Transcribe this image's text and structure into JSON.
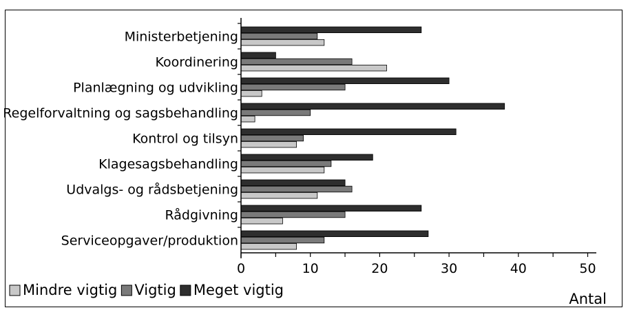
{
  "chart_data": {
    "type": "bar",
    "orientation": "horizontal",
    "categories": [
      "Ministerbetjening",
      "Koordinering",
      "Planlægning og udvikling",
      "Regelforvaltning og sagsbehandling",
      "Kontrol og tilsyn",
      "Klagesagsbehandling",
      "Udvalgs- og rådsbetjening",
      "Rådgivning",
      "Serviceopgaver/produktion"
    ],
    "series": [
      {
        "name": "Mindre vigtig",
        "color": "#c8c8c8",
        "values": [
          12,
          21,
          3,
          2,
          8,
          12,
          11,
          6,
          8
        ]
      },
      {
        "name": "Vigtig",
        "color": "#7a7a7a",
        "values": [
          11,
          16,
          15,
          10,
          9,
          13,
          16,
          15,
          12
        ]
      },
      {
        "name": "Meget vigtig",
        "color": "#2e2e2e",
        "values": [
          26,
          5,
          30,
          38,
          31,
          19,
          15,
          26,
          27
        ]
      }
    ],
    "xlim": [
      0,
      52
    ],
    "xticks": [
      "0",
      "10",
      "20",
      "30",
      "40",
      "50"
    ],
    "xlabel": "Antal",
    "ylabel": "",
    "title": "",
    "legend_position": "bottom-left",
    "grid": false
  }
}
